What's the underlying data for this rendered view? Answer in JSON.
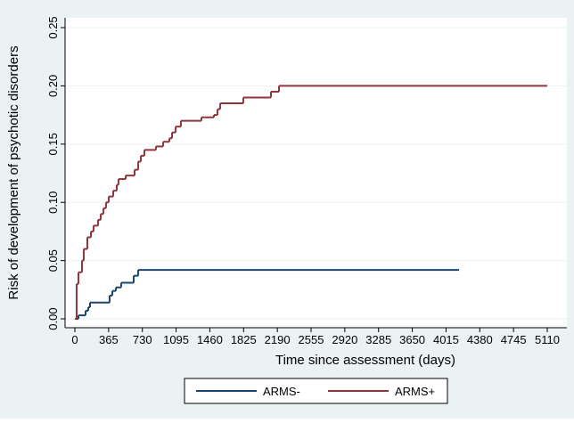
{
  "chart_data": {
    "type": "step",
    "step": "post",
    "xlabel": "Time since assessment (days)",
    "ylabel": "Risk of development of psychotic disorders",
    "xlim": [
      -106,
      5322
    ],
    "ylim": [
      -0.0076,
      0.2584
    ],
    "xticks": [
      0,
      365,
      730,
      1095,
      1460,
      1825,
      2190,
      2555,
      2920,
      3285,
      3650,
      4015,
      4380,
      4745,
      5110
    ],
    "yticks": [
      {
        "value": 0,
        "label": "0.00"
      },
      {
        "value": 0.05,
        "label": "0.05"
      },
      {
        "value": 0.1,
        "label": "0.10"
      },
      {
        "value": 0.15,
        "label": "0.15"
      },
      {
        "value": 0.2,
        "label": "0.20"
      },
      {
        "value": 0.25,
        "label": "0.25"
      }
    ],
    "grid": true,
    "legend": "bottom",
    "series": [
      {
        "name": "ARMS-",
        "color": "#1a476f",
        "x": [
          0,
          39,
          116,
          145,
          164,
          376,
          405,
          444,
          501,
          636,
          685,
          4156
        ],
        "values": [
          0,
          0.003,
          0.007,
          0.01,
          0.014,
          0.02,
          0.024,
          0.027,
          0.031,
          0.037,
          0.042,
          0.042
        ]
      },
      {
        "name": "ARMS+",
        "color": "#90353b",
        "x": [
          0,
          19,
          39,
          77,
          96,
          135,
          174,
          202,
          251,
          280,
          309,
          337,
          366,
          415,
          453,
          472,
          550,
          646,
          685,
          714,
          752,
          877,
          955,
          1022,
          1051,
          1090,
          1147,
          1369,
          1504,
          1543,
          1572,
          1822,
          2121,
          2208,
          5110
        ],
        "values": [
          0,
          0.03,
          0.04,
          0.05,
          0.06,
          0.07,
          0.075,
          0.08,
          0.085,
          0.09,
          0.095,
          0.1,
          0.105,
          0.11,
          0.115,
          0.12,
          0.123,
          0.128,
          0.135,
          0.14,
          0.145,
          0.148,
          0.152,
          0.155,
          0.16,
          0.165,
          0.17,
          0.173,
          0.175,
          0.18,
          0.185,
          0.19,
          0.195,
          0.2,
          0.2
        ]
      }
    ]
  }
}
